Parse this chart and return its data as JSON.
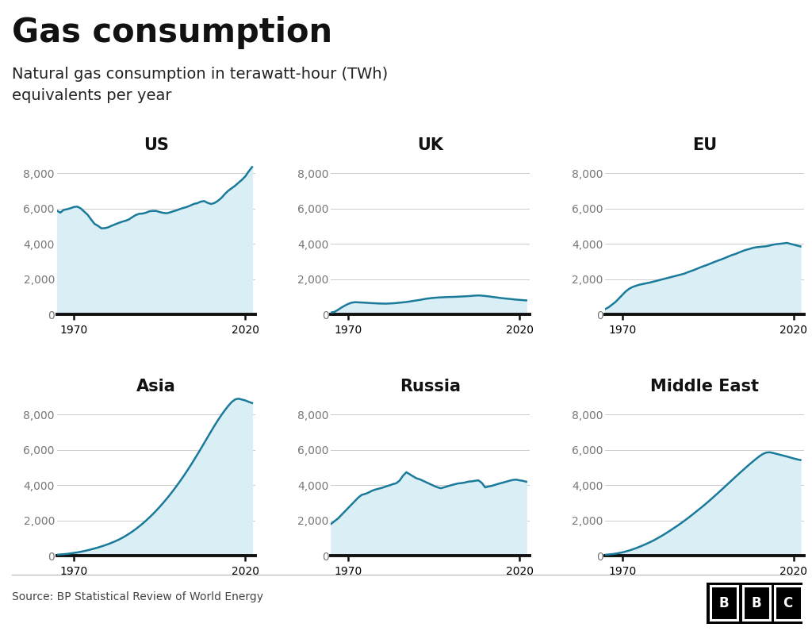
{
  "title": "Gas consumption",
  "subtitle": "Natural gas consumption in terawatt-hour (TWh)\nequivalents per year",
  "source": "Source: BP Statistical Review of World Energy",
  "regions": [
    "US",
    "UK",
    "EU",
    "Asia",
    "Russia",
    "Middle East"
  ],
  "year_start": 1965,
  "ylim": [
    0,
    9000
  ],
  "yticks": [
    0,
    2000,
    4000,
    6000,
    8000
  ],
  "xticks": [
    1970,
    2020
  ],
  "line_color": "#1a7a9a",
  "fill_color": "#daeef5",
  "background_color": "#ffffff",
  "title_fontsize": 30,
  "subtitle_fontsize": 14,
  "region_fontsize": 15,
  "tick_fontsize": 10,
  "source_fontsize": 10,
  "us_data": [
    5879,
    5766,
    5920,
    5960,
    6015,
    6088,
    6105,
    6002,
    5820,
    5644,
    5378,
    5131,
    5019,
    4877,
    4884,
    4933,
    5023,
    5100,
    5177,
    5248,
    5302,
    5376,
    5506,
    5627,
    5698,
    5712,
    5760,
    5841,
    5866,
    5862,
    5800,
    5755,
    5731,
    5775,
    5843,
    5899,
    5976,
    6034,
    6089,
    6170,
    6258,
    6301,
    6389,
    6422,
    6322,
    6255,
    6310,
    6433,
    6592,
    6812,
    7001,
    7145,
    7284,
    7456,
    7621,
    7820,
    8100,
    8350
  ],
  "uk_data": [
    100,
    140,
    250,
    380,
    490,
    590,
    660,
    690,
    680,
    670,
    660,
    645,
    635,
    625,
    615,
    610,
    605,
    615,
    625,
    640,
    660,
    680,
    700,
    730,
    760,
    790,
    820,
    855,
    890,
    915,
    935,
    950,
    960,
    970,
    980,
    985,
    990,
    1000,
    1010,
    1020,
    1030,
    1045,
    1060,
    1070,
    1060,
    1040,
    1020,
    990,
    965,
    940,
    915,
    895,
    875,
    855,
    835,
    820,
    805,
    790
  ],
  "eu_data": [
    300,
    400,
    550,
    700,
    900,
    1100,
    1300,
    1450,
    1550,
    1620,
    1680,
    1720,
    1760,
    1800,
    1850,
    1900,
    1950,
    2000,
    2050,
    2100,
    2150,
    2200,
    2250,
    2300,
    2380,
    2450,
    2520,
    2600,
    2680,
    2750,
    2820,
    2900,
    2980,
    3050,
    3120,
    3200,
    3280,
    3360,
    3420,
    3500,
    3580,
    3650,
    3700,
    3760,
    3800,
    3820,
    3840,
    3860,
    3900,
    3950,
    3980,
    4000,
    4020,
    4050,
    4000,
    3950,
    3900,
    3850
  ],
  "asia_data": [
    50,
    65,
    80,
    100,
    125,
    155,
    185,
    220,
    260,
    305,
    355,
    405,
    460,
    520,
    585,
    655,
    730,
    810,
    900,
    1000,
    1110,
    1230,
    1360,
    1500,
    1650,
    1810,
    1980,
    2160,
    2350,
    2550,
    2760,
    2980,
    3210,
    3450,
    3700,
    3960,
    4230,
    4510,
    4800,
    5100,
    5410,
    5730,
    6050,
    6380,
    6710,
    7040,
    7360,
    7670,
    7960,
    8230,
    8480,
    8700,
    8850,
    8900,
    8850,
    8800,
    8720,
    8650
  ],
  "russia_data": [
    1800,
    1950,
    2100,
    2300,
    2500,
    2700,
    2900,
    3100,
    3300,
    3450,
    3500,
    3580,
    3680,
    3750,
    3800,
    3850,
    3920,
    3980,
    4050,
    4100,
    4250,
    4530,
    4730,
    4610,
    4490,
    4380,
    4320,
    4230,
    4140,
    4050,
    3960,
    3880,
    3820,
    3870,
    3930,
    3990,
    4040,
    4090,
    4110,
    4140,
    4190,
    4210,
    4240,
    4270,
    4130,
    3870,
    3920,
    3960,
    4020,
    4080,
    4130,
    4185,
    4240,
    4290,
    4310,
    4270,
    4240,
    4190
  ],
  "middle_east_data": [
    50,
    65,
    85,
    110,
    145,
    185,
    235,
    290,
    355,
    425,
    500,
    580,
    665,
    755,
    850,
    955,
    1065,
    1180,
    1300,
    1425,
    1555,
    1685,
    1820,
    1960,
    2105,
    2255,
    2410,
    2565,
    2720,
    2880,
    3045,
    3215,
    3390,
    3565,
    3740,
    3920,
    4100,
    4280,
    4460,
    4635,
    4810,
    4985,
    5155,
    5320,
    5480,
    5630,
    5760,
    5840,
    5860,
    5820,
    5770,
    5720,
    5670,
    5620,
    5565,
    5510,
    5460,
    5420
  ]
}
